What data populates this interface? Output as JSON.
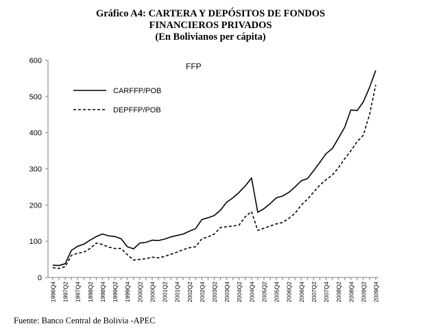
{
  "header": {
    "line1": "Gráfico A4: CARTERA Y DEPÓSITOS DE FONDOS",
    "line2": "FINANCIEROS PRIVADOS",
    "line3": "(En Bolivianos per cápita)"
  },
  "footer": {
    "source": "Fuente: Banco Central de Bolivia -APEC"
  },
  "colors": {
    "line": "#000000",
    "axis": "#7f7f7f"
  },
  "chart_data": {
    "type": "line",
    "title": "FFP",
    "xlabel": "",
    "ylabel": "",
    "ylim": [
      0,
      600
    ],
    "yticks": [
      0,
      100,
      200,
      300,
      400,
      500,
      600
    ],
    "grid": false,
    "legend_position": "top-left",
    "categories": [
      "1996Q4",
      "1997Q1",
      "1997Q2",
      "1997Q3",
      "1997Q4",
      "1998Q1",
      "1998Q2",
      "1998Q3",
      "1998Q4",
      "1999Q1",
      "1999Q2",
      "1999Q3",
      "1999Q4",
      "2000Q1",
      "2000Q2",
      "2000Q3",
      "2000Q4",
      "2001Q1",
      "2001Q2",
      "2001Q3",
      "2001Q4",
      "2002Q1",
      "2002Q2",
      "2002Q3",
      "2002Q4",
      "2003Q1",
      "2003Q2",
      "2003Q3",
      "2003Q4",
      "2004Q1",
      "2004Q2",
      "2004Q3",
      "2004Q4",
      "2005Q1",
      "2005Q2",
      "2005Q3",
      "2005Q4",
      "2006Q1",
      "2006Q2",
      "2006Q3",
      "2006Q4",
      "2007Q1",
      "2007Q2",
      "2007Q3",
      "2007Q4",
      "2008Q1",
      "2008Q2",
      "2008Q3",
      "2008Q4",
      "2009Q1",
      "2009Q2",
      "2009Q3",
      "2009Q4"
    ],
    "tick_labels": [
      "1996Q4",
      "1997Q2",
      "1997Q4",
      "1998Q2",
      "1998Q4",
      "1999Q2",
      "1999Q4",
      "2000Q2",
      "2000Q4",
      "2001Q2",
      "2001Q4",
      "2002Q2",
      "2002Q4",
      "2003Q2",
      "2003Q4",
      "2004Q2",
      "2004Q4",
      "2005Q2",
      "2005Q4",
      "2006Q2",
      "2006Q4",
      "2007Q2",
      "2007Q4",
      "2008Q2",
      "2008Q4",
      "2009Q2",
      "2009Q4"
    ],
    "series": [
      {
        "name": "CARFFP/POB",
        "style": "solid",
        "values": [
          34,
          33,
          38,
          75,
          86,
          92,
          103,
          113,
          120,
          115,
          113,
          107,
          85,
          79,
          95,
          97,
          103,
          102,
          106,
          112,
          116,
          120,
          128,
          135,
          160,
          165,
          171,
          186,
          208,
          220,
          235,
          253,
          275,
          180,
          190,
          204,
          220,
          225,
          235,
          250,
          267,
          273,
          295,
          318,
          342,
          356,
          385,
          415,
          463,
          461,
          485,
          525,
          572
        ]
      },
      {
        "name": "DEPFFP/POB",
        "style": "dashed",
        "values": [
          27,
          25,
          30,
          61,
          67,
          70,
          80,
          95,
          91,
          84,
          80,
          80,
          63,
          48,
          50,
          52,
          56,
          54,
          58,
          64,
          70,
          77,
          82,
          85,
          107,
          112,
          120,
          138,
          140,
          142,
          145,
          168,
          182,
          130,
          136,
          142,
          148,
          152,
          163,
          177,
          200,
          216,
          236,
          255,
          270,
          283,
          303,
          328,
          350,
          375,
          393,
          450,
          532
        ]
      }
    ]
  }
}
